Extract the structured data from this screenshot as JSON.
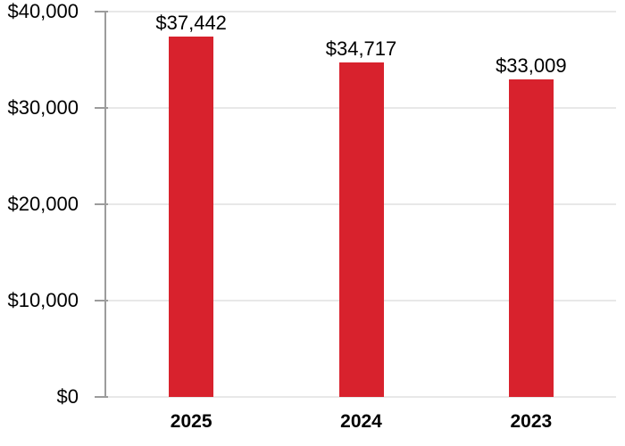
{
  "chart_data": {
    "type": "bar",
    "categories": [
      "2025",
      "2024",
      "2023"
    ],
    "values": [
      37442,
      34717,
      33009
    ],
    "value_labels": [
      "$37,442",
      "$34,717",
      "$33,009"
    ],
    "title": "",
    "xlabel": "",
    "ylabel": "",
    "ylim": [
      0,
      40000
    ],
    "ytick_step": 10000,
    "yticks": [
      {
        "value": 0,
        "label": "$0"
      },
      {
        "value": 10000,
        "label": "$10,000"
      },
      {
        "value": 20000,
        "label": "$20,000"
      },
      {
        "value": 30000,
        "label": "$30,000"
      },
      {
        "value": 40000,
        "label": "$40,000"
      }
    ],
    "grid": true,
    "legend": false,
    "colors": {
      "bar": "#d8222d",
      "axis": "#9c9c9c",
      "gridline": "#e8e8e8",
      "text": "#000000"
    }
  }
}
